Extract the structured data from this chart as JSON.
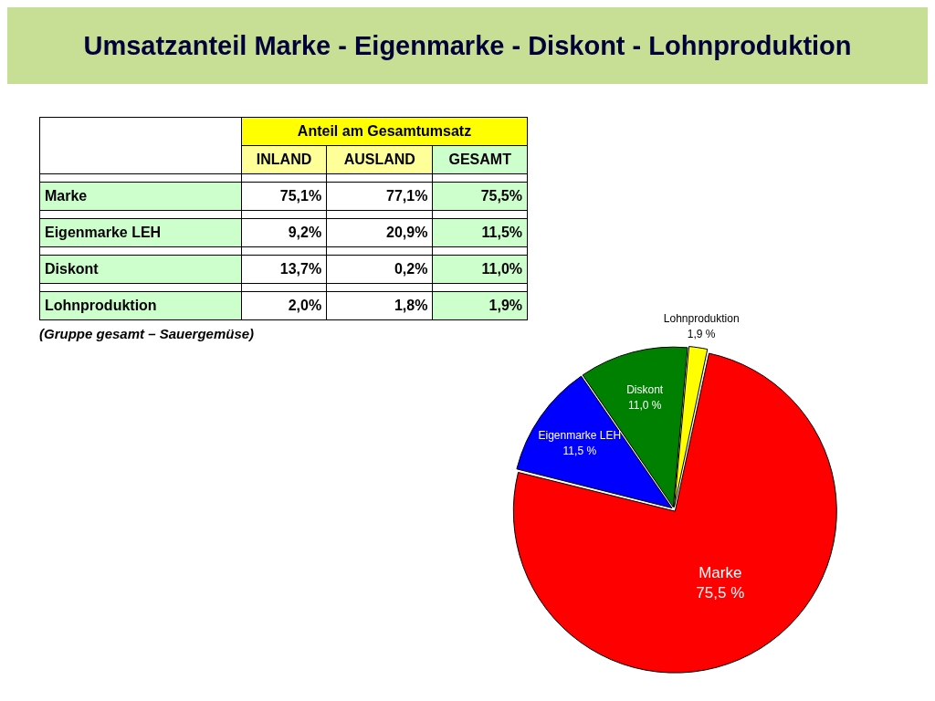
{
  "chart_data": [
    {
      "type": "heatmap",
      "title": "Umsatzanteil Marke - Eigenmarke - Diskont - Lohnproduktion",
      "subtitle": "Anteil am Gesamtumsatz",
      "categories": [
        "INLAND",
        "AUSLAND",
        "GESAMT"
      ],
      "y_categories": [
        "Marke",
        "Eigenmarke LEH",
        "Diskont",
        "Lohnproduktion"
      ],
      "cells": [
        [
          75.1,
          77.1,
          75.5
        ],
        [
          9.2,
          20.9,
          11.5
        ],
        [
          13.7,
          0.2,
          11.0
        ],
        [
          2.0,
          1.8,
          1.9
        ]
      ],
      "cell_labels": [
        [
          "75,1%",
          "77,1%",
          "75,5%"
        ],
        [
          "9,2%",
          "20,9%",
          "11,5%"
        ],
        [
          "13,7%",
          "0,2%",
          "11,0%"
        ],
        [
          "2,0%",
          "1,8%",
          "1,9%"
        ]
      ],
      "annotations": [
        "(Gruppe gesamt – Sauergemüse)"
      ]
    },
    {
      "type": "pie",
      "categories": [
        "Marke",
        "Eigenmarke LEH",
        "Diskont",
        "Lohnproduktion"
      ],
      "values": [
        75.5,
        11.5,
        11.0,
        1.9
      ],
      "colors": [
        "#ff0000",
        "#0000ff",
        "#008000",
        "#ffff00"
      ],
      "value_labels": [
        "75,5 %",
        "11,5 %",
        "11,0 %",
        "1,9 %"
      ],
      "legend": false
    }
  ]
}
